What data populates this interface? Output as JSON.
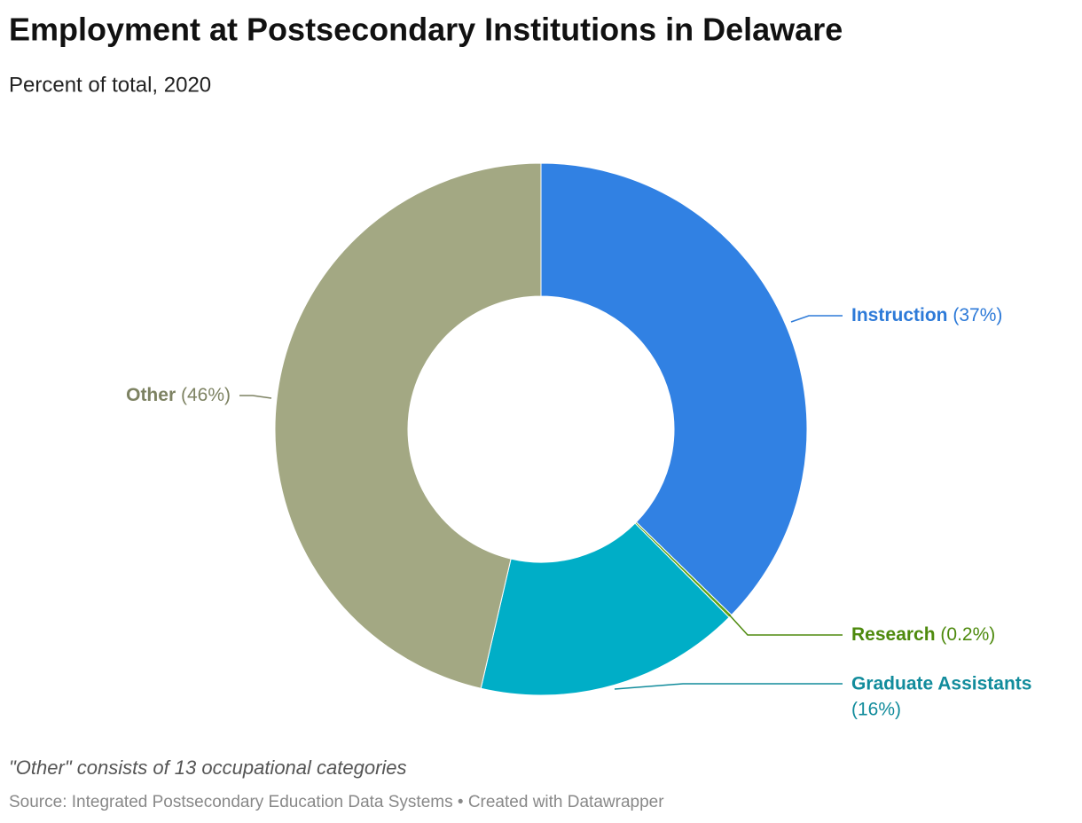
{
  "chart_data": {
    "type": "donut",
    "title": "Employment at Postsecondary Institutions in Delaware",
    "subtitle": "Percent of total, 2020",
    "categories": [
      "Instruction",
      "Research",
      "Graduate Assistants",
      "Other"
    ],
    "values": [
      37,
      0.2,
      16,
      46
    ],
    "value_labels": [
      "(37%)",
      "(0.2%)",
      "(16%)",
      "(46%)"
    ],
    "colors": [
      "#3181e3",
      "#5fa312",
      "#00aec7",
      "#a3a883"
    ],
    "label_colors": [
      "#2d7ad8",
      "#4e8a0e",
      "#128c9c",
      "#7d8262"
    ],
    "note": "\"Other\" consists of 13 occupational categories",
    "source": "Source: Integrated Postsecondary Education Data Systems • Created with Datawrapper"
  }
}
